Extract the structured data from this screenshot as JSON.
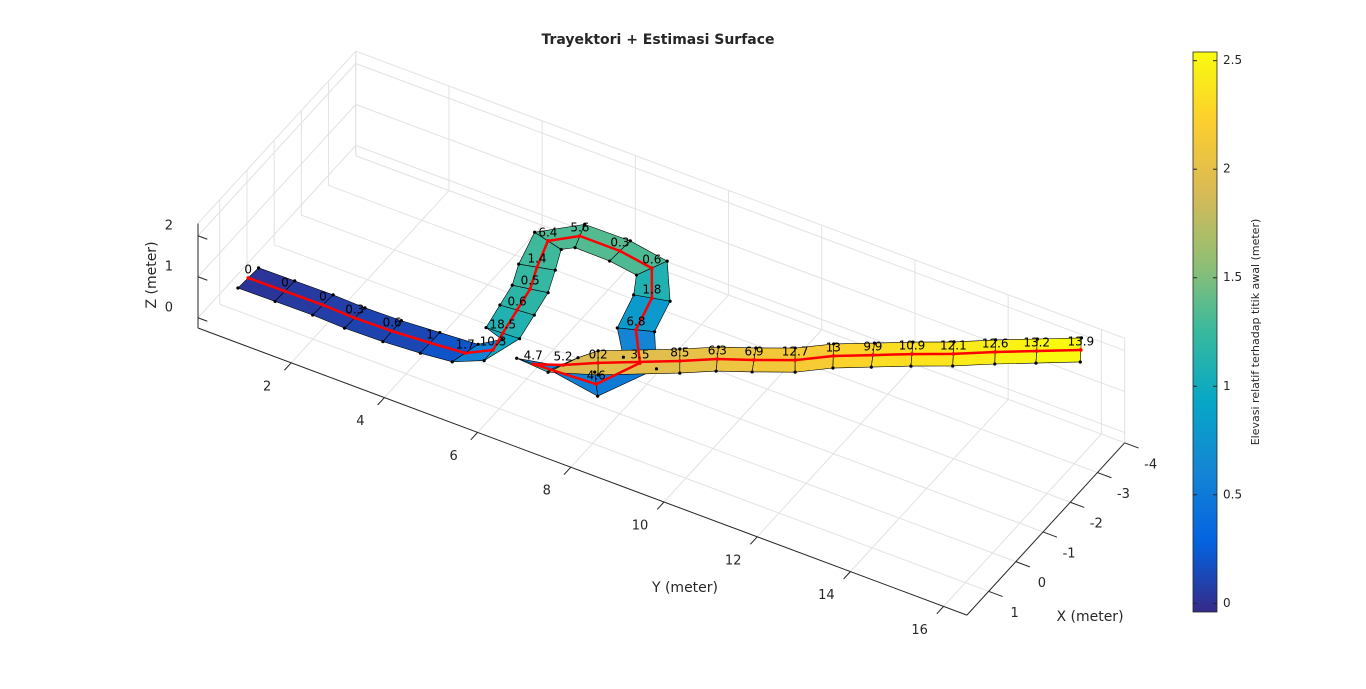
{
  "chart_data": {
    "type": "surface3d",
    "title": "Trayektori + Estimasi Surface",
    "xlabel": "X (meter)",
    "ylabel": "Y (meter)",
    "zlabel": "Z (meter)",
    "xlim": [
      -4,
      1.8
    ],
    "ylim": [
      0,
      16.5
    ],
    "zlim": [
      -0.25,
      2.3
    ],
    "xticks": [
      -4,
      -3,
      -2,
      -1,
      0,
      1
    ],
    "yticks": [
      2,
      4,
      6,
      8,
      10,
      12,
      14,
      16
    ],
    "zticks": [
      0,
      1,
      2
    ],
    "grid": true,
    "line_color": "#ff0000",
    "x": [
      0.33,
      0.37,
      0.36,
      0.44,
      0.42,
      0.41,
      0.44,
      0.77,
      0.41,
      -0.2,
      -0.8,
      -1.36,
      -2.07,
      -2.44,
      -2.44,
      -2.36,
      -2.02,
      -1.28,
      -0.69,
      0.25,
      0.44,
      1.52,
      1.19,
      0.43,
      0.08,
      -0.19,
      -0.52,
      -0.93,
      -1.22,
      -1.56,
      -1.9,
      -2.29,
      -2.65,
      -3.04
    ],
    "y": [
      0.22,
      1.03,
      1.84,
      2.57,
      3.36,
      4.17,
      4.94,
      5.73,
      5.73,
      5.68,
      5.61,
      5.43,
      5.25,
      5.72,
      6.58,
      7.31,
      7.51,
      7.6,
      8.03,
      7.64,
      6.4,
      7.67,
      8.23,
      9.54,
      10.14,
      10.77,
      11.46,
      12.04,
      12.72,
      13.36,
      14.05,
      14.72,
      15.4,
      16.12
    ],
    "z": [
      0,
      0.05,
      0.05,
      0.1,
      0.1,
      0.15,
      0.25,
      0.9,
      1.05,
      1.15,
      1.2,
      1.25,
      1.3,
      1.35,
      1.35,
      1.3,
      0.9,
      0.7,
      0.5,
      0.5,
      0.6,
      1.9,
      1.95,
      2.0,
      2.05,
      2.1,
      2.15,
      2.2,
      2.3,
      2.35,
      2.4,
      2.45,
      2.5,
      2.55
    ],
    "point_labels": [
      0,
      0,
      0,
      0.3,
      0.6,
      1,
      1.7,
      10.3,
      18.5,
      0.6,
      0.5,
      1.4,
      6.4,
      5.6,
      0.3,
      0.6,
      1.8,
      6.8,
      3.5,
      4.6,
      4.7,
      5.2,
      0.2,
      8.5,
      6.3,
      6.9,
      12.7,
      13,
      9.9,
      10.9,
      12.1,
      12.6,
      13.2,
      13.9
    ],
    "colorbar": {
      "label": "Elevasi relatif terhadap titik awal (meter)",
      "clim": [
        -0.04,
        2.54
      ],
      "ticks": [
        0,
        0.5,
        1,
        1.5,
        2,
        2.5
      ]
    },
    "colormap": [
      "#352a87",
      "#0363e1",
      "#1485d4",
      "#06a7c6",
      "#38b99e",
      "#92bf73",
      "#d9ba56",
      "#fcce2e",
      "#f9fb0e"
    ]
  }
}
